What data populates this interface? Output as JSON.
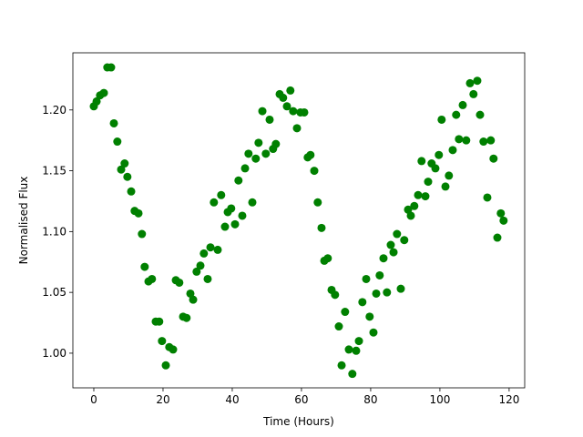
{
  "chart_data": {
    "type": "scatter",
    "x_label": "Time (Hours)",
    "y_label": "Normalised Flux",
    "color": "#008000",
    "x": [
      0,
      0.8,
      1.8,
      2.9,
      3.9,
      5.0,
      5.8,
      6.8,
      7.9,
      8.9,
      9.7,
      10.8,
      11.8,
      12.9,
      13.9,
      14.7,
      15.8,
      16.8,
      17.9,
      18.9,
      19.7,
      20.8,
      21.8,
      22.9,
      23.7,
      24.7,
      25.8,
      26.8,
      27.9,
      28.7,
      29.7,
      30.8,
      31.8,
      32.9,
      33.7,
      34.7,
      35.8,
      36.8,
      37.9,
      38.7,
      39.7,
      40.8,
      41.8,
      42.9,
      43.7,
      44.7,
      45.8,
      46.8,
      47.6,
      48.7,
      49.7,
      50.8,
      51.8,
      52.6,
      53.7,
      54.7,
      55.8,
      56.8,
      57.6,
      58.7,
      59.7,
      60.8,
      61.8,
      62.6,
      63.7,
      64.7,
      65.8,
      66.6,
      67.6,
      68.7,
      69.7,
      70.8,
      71.6,
      72.6,
      73.7,
      74.7,
      75.8,
      76.6,
      77.6,
      78.7,
      79.7,
      80.8,
      81.6,
      82.6,
      83.7,
      84.7,
      85.8,
      86.6,
      87.6,
      88.7,
      89.7,
      90.8,
      91.6,
      92.6,
      93.7,
      94.7,
      95.8,
      96.6,
      97.6,
      98.7,
      99.7,
      100.5,
      101.6,
      102.6,
      103.7,
      104.7,
      105.5,
      106.6,
      107.6,
      108.7,
      109.7,
      110.8,
      111.6,
      112.6,
      113.7,
      114.7,
      115.5,
      116.6,
      117.6,
      118.4
    ],
    "values": [
      1.203,
      1.207,
      1.212,
      1.214,
      1.235,
      1.235,
      1.189,
      1.174,
      1.151,
      1.156,
      1.145,
      1.133,
      1.117,
      1.115,
      1.098,
      1.071,
      1.059,
      1.061,
      1.026,
      1.026,
      1.01,
      0.99,
      1.005,
      1.003,
      1.06,
      1.058,
      1.03,
      1.029,
      1.049,
      1.044,
      1.067,
      1.072,
      1.082,
      1.061,
      1.087,
      1.124,
      1.085,
      1.13,
      1.104,
      1.116,
      1.119,
      1.106,
      1.142,
      1.113,
      1.152,
      1.164,
      1.124,
      1.16,
      1.173,
      1.199,
      1.164,
      1.192,
      1.168,
      1.172,
      1.213,
      1.21,
      1.203,
      1.216,
      1.199,
      1.185,
      1.198,
      1.198,
      1.161,
      1.163,
      1.15,
      1.124,
      1.103,
      1.076,
      1.078,
      1.052,
      1.048,
      1.022,
      0.99,
      1.034,
      1.003,
      0.983,
      1.002,
      1.01,
      1.042,
      1.061,
      1.03,
      1.017,
      1.049,
      1.064,
      1.078,
      1.05,
      1.089,
      1.083,
      1.098,
      1.053,
      1.093,
      1.118,
      1.113,
      1.121,
      1.13,
      1.158,
      1.129,
      1.141,
      1.156,
      1.152,
      1.163,
      1.192,
      1.137,
      1.146,
      1.167,
      1.196,
      1.176,
      1.204,
      1.175,
      1.222,
      1.213,
      1.224,
      1.196,
      1.174,
      1.128,
      1.175,
      1.16,
      1.095,
      1.115,
      1.109
    ],
    "xlim": [
      -6.05,
      124.5
    ],
    "ylim": [
      0.9715,
      1.247
    ],
    "xticks": [
      0,
      20,
      40,
      60,
      80,
      100,
      120
    ],
    "yticks": [
      {
        "value": 1.0,
        "label": "1.00"
      },
      {
        "value": 1.05,
        "label": "1.05"
      },
      {
        "value": 1.1,
        "label": "1.10"
      },
      {
        "value": 1.15,
        "label": "1.15"
      },
      {
        "value": 1.2,
        "label": "1.20"
      }
    ]
  }
}
